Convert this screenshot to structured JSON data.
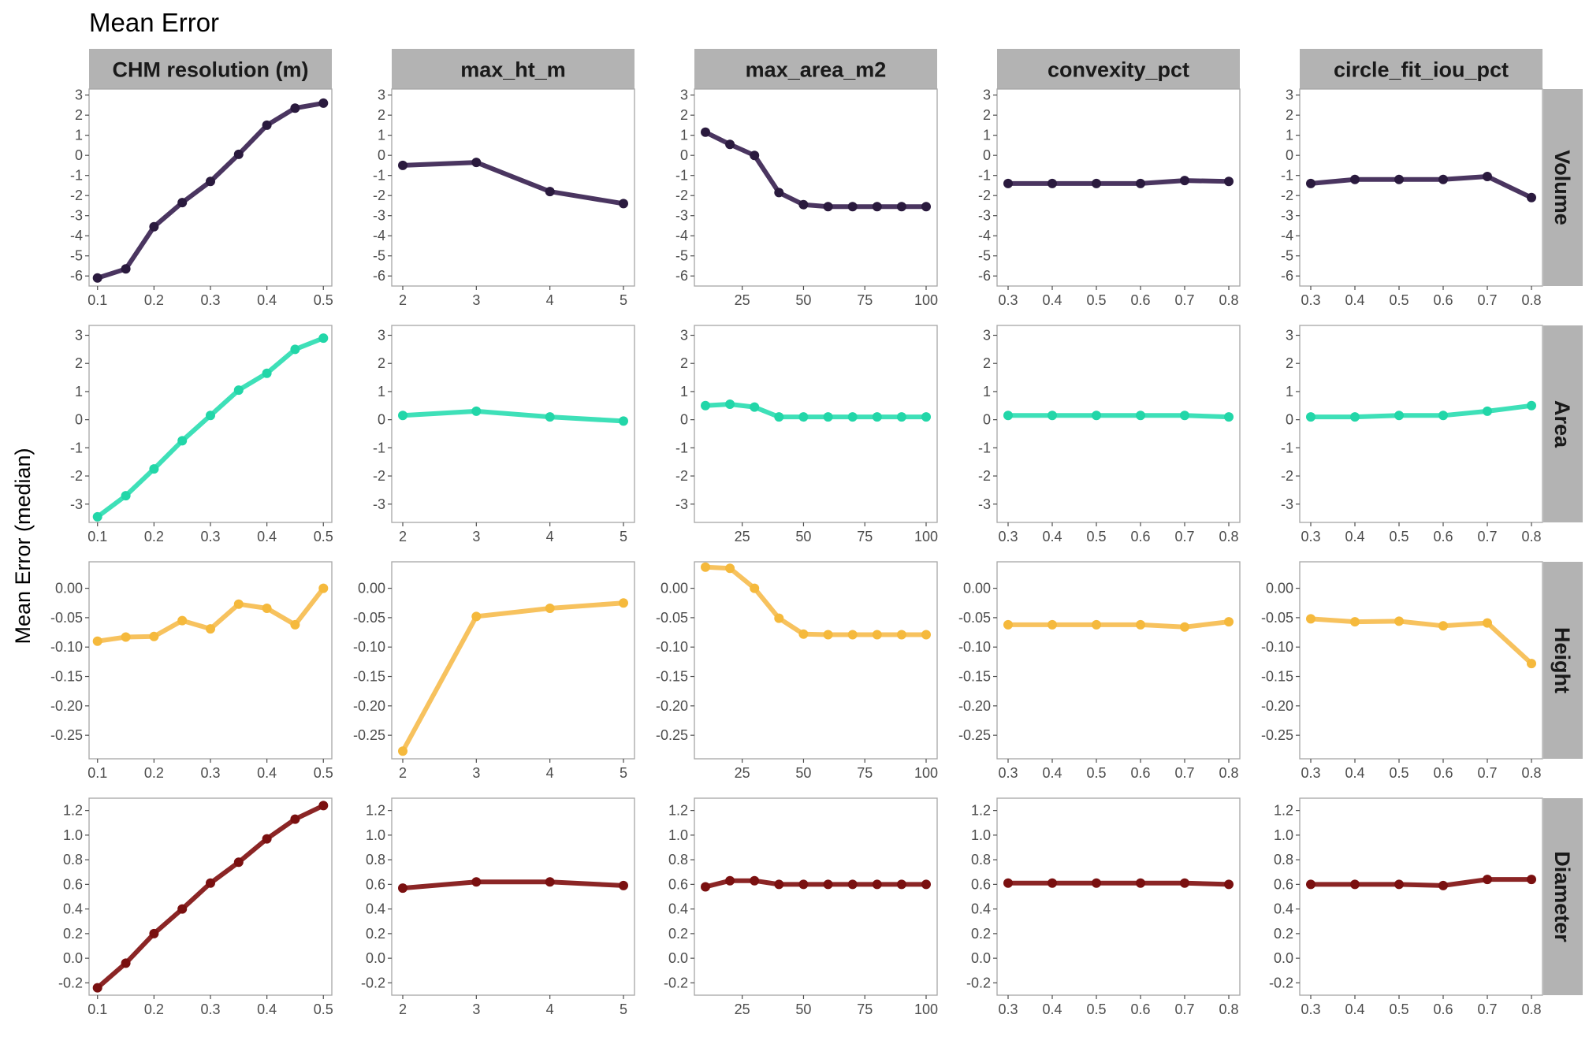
{
  "chart_data": {
    "type": "line",
    "title": "Mean Error",
    "ylabel": "Mean Error (median)",
    "grid": true,
    "legend": "none",
    "columns": [
      {
        "key": "res",
        "label": "CHM resolution (m)",
        "x": [
          0.1,
          0.15,
          0.2,
          0.25,
          0.3,
          0.35,
          0.4,
          0.45,
          0.5
        ],
        "xlim": [
          0.085,
          0.515
        ],
        "xticks": [
          0.1,
          0.2,
          0.3,
          0.4,
          0.5
        ],
        "xminor": [
          0.15,
          0.25,
          0.35,
          0.45
        ],
        "xtick_labels": [
          "0.1",
          "0.2",
          "0.3",
          "0.4",
          "0.5"
        ]
      },
      {
        "key": "ht",
        "label": "max_ht_m",
        "x": [
          2,
          3,
          4,
          5
        ],
        "xlim": [
          1.85,
          5.15
        ],
        "xticks": [
          2,
          3,
          4,
          5
        ],
        "xminor": [
          2.5,
          3.5,
          4.5
        ],
        "xtick_labels": [
          "2",
          "3",
          "4",
          "5"
        ]
      },
      {
        "key": "area",
        "label": "max_area_m2",
        "x": [
          10,
          20,
          30,
          40,
          50,
          60,
          70,
          80,
          90,
          100
        ],
        "xlim": [
          5.5,
          104.5
        ],
        "xticks": [
          25,
          50,
          75,
          100
        ],
        "xminor": [
          12.5,
          37.5,
          62.5,
          87.5
        ],
        "xtick_labels": [
          "25",
          "50",
          "75",
          "100"
        ]
      },
      {
        "key": "conv",
        "label": "convexity_pct",
        "x": [
          0.3,
          0.4,
          0.5,
          0.6,
          0.7,
          0.8
        ],
        "xlim": [
          0.275,
          0.825
        ],
        "xticks": [
          0.3,
          0.4,
          0.5,
          0.6,
          0.7,
          0.8
        ],
        "xminor": [
          0.35,
          0.45,
          0.55,
          0.65,
          0.75
        ],
        "xtick_labels": [
          "0.3",
          "0.4",
          "0.5",
          "0.6",
          "0.7",
          "0.8"
        ]
      },
      {
        "key": "circ",
        "label": "circle_fit_iou_pct",
        "x": [
          0.3,
          0.4,
          0.5,
          0.6,
          0.7,
          0.8
        ],
        "xlim": [
          0.275,
          0.825
        ],
        "xticks": [
          0.3,
          0.4,
          0.5,
          0.6,
          0.7,
          0.8
        ],
        "xminor": [
          0.35,
          0.45,
          0.55,
          0.65,
          0.75
        ],
        "xtick_labels": [
          "0.3",
          "0.4",
          "0.5",
          "0.6",
          "0.7",
          "0.8"
        ]
      }
    ],
    "rows": [
      {
        "label": "Volume",
        "color": "#4a3560",
        "point_color": "#2a1a3e",
        "ylim": [
          -6.5,
          3.3
        ],
        "yticks": [
          -6,
          -5,
          -4,
          -3,
          -2,
          -1,
          0,
          1,
          2,
          3
        ],
        "ytick_labels": [
          "-6",
          "-5",
          "-4",
          "-3",
          "-2",
          "-1",
          "0",
          "1",
          "2",
          "3"
        ],
        "yminor": [
          -5.5,
          -4.5,
          -3.5,
          -2.5,
          -1.5,
          -0.5,
          0.5,
          1.5,
          2.5
        ],
        "series": {
          "res": [
            -6.1,
            -5.65,
            -3.55,
            -2.35,
            -1.3,
            0.05,
            1.5,
            2.35,
            2.6
          ],
          "ht": [
            -0.5,
            -0.35,
            -1.8,
            -2.4
          ],
          "area": [
            1.15,
            0.55,
            0.0,
            -1.85,
            -2.45,
            -2.55,
            -2.55,
            -2.55,
            -2.55,
            -2.55
          ],
          "conv": [
            -1.4,
            -1.4,
            -1.4,
            -1.4,
            -1.25,
            -1.3
          ],
          "circ": [
            -1.4,
            -1.2,
            -1.2,
            -1.2,
            -1.05,
            -2.1
          ]
        }
      },
      {
        "label": "Area",
        "color": "#3ee0b8",
        "point_color": "#22d6a8",
        "ylim": [
          -3.65,
          3.35
        ],
        "yticks": [
          -3,
          -2,
          -1,
          0,
          1,
          2,
          3
        ],
        "ytick_labels": [
          "-3",
          "-2",
          "-1",
          "0",
          "1",
          "2",
          "3"
        ],
        "yminor": [
          -2.5,
          -1.5,
          -0.5,
          0.5,
          1.5,
          2.5
        ],
        "series": {
          "res": [
            -3.45,
            -2.7,
            -1.75,
            -0.75,
            0.15,
            1.05,
            1.65,
            2.5,
            2.9
          ],
          "ht": [
            0.15,
            0.3,
            0.1,
            -0.05
          ],
          "area": [
            0.5,
            0.55,
            0.45,
            0.1,
            0.1,
            0.1,
            0.1,
            0.1,
            0.1,
            0.1
          ],
          "conv": [
            0.15,
            0.15,
            0.15,
            0.15,
            0.15,
            0.1
          ],
          "circ": [
            0.1,
            0.1,
            0.15,
            0.15,
            0.3,
            0.5
          ]
        }
      },
      {
        "label": "Height",
        "color": "#f7c25e",
        "point_color": "#f5b93c",
        "ylim": [
          -0.29,
          0.045
        ],
        "yticks": [
          -0.25,
          -0.2,
          -0.15,
          -0.1,
          -0.05,
          0.0
        ],
        "ytick_labels": [
          "-0.25",
          "-0.20",
          "-0.15",
          "-0.10",
          "-0.05",
          "0.00"
        ],
        "yminor": [
          -0.275,
          -0.225,
          -0.175,
          -0.125,
          -0.075,
          -0.025,
          0.025
        ],
        "series": {
          "res": [
            -0.09,
            -0.083,
            -0.082,
            -0.055,
            -0.069,
            -0.027,
            -0.034,
            -0.062,
            0.0
          ],
          "ht": [
            -0.277,
            -0.048,
            -0.034,
            -0.025
          ],
          "area": [
            0.036,
            0.034,
            0.0,
            -0.051,
            -0.078,
            -0.079,
            -0.079,
            -0.079,
            -0.079,
            -0.079
          ],
          "conv": [
            -0.062,
            -0.062,
            -0.062,
            -0.062,
            -0.066,
            -0.057
          ],
          "circ": [
            -0.052,
            -0.057,
            -0.056,
            -0.064,
            -0.059,
            -0.128
          ]
        }
      },
      {
        "label": "Diameter",
        "color": "#8b2525",
        "point_color": "#7a1010",
        "ylim": [
          -0.3,
          1.3
        ],
        "yticks": [
          -0.2,
          0.0,
          0.2,
          0.4,
          0.6,
          0.8,
          1.0,
          1.2
        ],
        "ytick_labels": [
          "-0.2",
          "0.0",
          "0.2",
          "0.4",
          "0.6",
          "0.8",
          "1.0",
          "1.2"
        ],
        "yminor": [
          -0.1,
          0.1,
          0.3,
          0.5,
          0.7,
          0.9,
          1.1
        ],
        "series": {
          "res": [
            -0.24,
            -0.04,
            0.2,
            0.4,
            0.61,
            0.78,
            0.97,
            1.13,
            1.24
          ],
          "ht": [
            0.57,
            0.62,
            0.62,
            0.59
          ],
          "area": [
            0.58,
            0.63,
            0.63,
            0.6,
            0.6,
            0.6,
            0.6,
            0.6,
            0.6,
            0.6
          ],
          "conv": [
            0.61,
            0.61,
            0.61,
            0.61,
            0.61,
            0.6
          ],
          "circ": [
            0.6,
            0.6,
            0.6,
            0.59,
            0.64,
            0.64
          ]
        }
      }
    ]
  }
}
